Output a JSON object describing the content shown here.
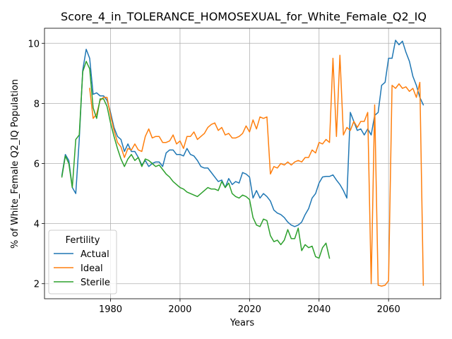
{
  "chart_data": {
    "type": "line",
    "title": "Score_4_in_TOLERANCE_HOMOSEXUAL_for_White_Female_Q2_IQ",
    "xlabel": "Years",
    "ylabel": "% of White_Female Q2_IQ Population",
    "xlim": [
      1961,
      2075
    ],
    "ylim": [
      1.5,
      10.5
    ],
    "x_ticks": [
      1980,
      2000,
      2020,
      2040,
      2060
    ],
    "y_ticks": [
      2,
      4,
      6,
      8,
      10
    ],
    "grid": true,
    "legend": {
      "title": "Fertility",
      "placement": "lower-left"
    },
    "colors": {
      "Actual": "#1f77b4",
      "Ideal": "#ff7f0e",
      "Sterile": "#2ca02c"
    },
    "series": [
      {
        "name": "Actual",
        "points": [
          [
            1966,
            5.6
          ],
          [
            1967,
            6.3
          ],
          [
            1968,
            6.1
          ],
          [
            1969,
            5.2
          ],
          [
            1970,
            5.0
          ],
          [
            1971,
            6.8
          ],
          [
            1972,
            9.1
          ],
          [
            1973,
            9.8
          ],
          [
            1974,
            9.5
          ],
          [
            1975,
            8.3
          ],
          [
            1976,
            8.35
          ],
          [
            1977,
            8.25
          ],
          [
            1978,
            8.25
          ],
          [
            1979,
            8.1
          ],
          [
            1980,
            7.7
          ],
          [
            1981,
            7.2
          ],
          [
            1982,
            6.9
          ],
          [
            1983,
            6.8
          ],
          [
            1984,
            6.4
          ],
          [
            1985,
            6.65
          ],
          [
            1986,
            6.4
          ],
          [
            1987,
            6.4
          ],
          [
            1988,
            6.2
          ],
          [
            1989,
            5.95
          ],
          [
            1990,
            6.1
          ],
          [
            1991,
            5.9
          ],
          [
            1992,
            6.0
          ],
          [
            1993,
            6.05
          ],
          [
            1994,
            6.05
          ],
          [
            1995,
            5.9
          ],
          [
            1996,
            6.35
          ],
          [
            1997,
            6.45
          ],
          [
            1998,
            6.45
          ],
          [
            1999,
            6.3
          ],
          [
            2000,
            6.3
          ],
          [
            2001,
            6.25
          ],
          [
            2002,
            6.5
          ],
          [
            2003,
            6.3
          ],
          [
            2004,
            6.25
          ],
          [
            2005,
            6.1
          ],
          [
            2006,
            5.9
          ],
          [
            2007,
            5.85
          ],
          [
            2008,
            5.85
          ],
          [
            2009,
            5.7
          ],
          [
            2010,
            5.55
          ],
          [
            2011,
            5.4
          ],
          [
            2012,
            5.45
          ],
          [
            2013,
            5.2
          ],
          [
            2014,
            5.5
          ],
          [
            2015,
            5.3
          ],
          [
            2016,
            5.4
          ],
          [
            2017,
            5.35
          ],
          [
            2018,
            5.7
          ],
          [
            2019,
            5.65
          ],
          [
            2020,
            5.55
          ],
          [
            2021,
            4.85
          ],
          [
            2022,
            5.1
          ],
          [
            2023,
            4.85
          ],
          [
            2024,
            5.0
          ],
          [
            2025,
            4.9
          ],
          [
            2026,
            4.75
          ],
          [
            2027,
            4.45
          ],
          [
            2028,
            4.35
          ],
          [
            2029,
            4.3
          ],
          [
            2030,
            4.2
          ],
          [
            2031,
            4.05
          ],
          [
            2032,
            3.95
          ],
          [
            2033,
            3.9
          ],
          [
            2034,
            3.95
          ],
          [
            2035,
            4.05
          ],
          [
            2036,
            4.3
          ],
          [
            2037,
            4.5
          ],
          [
            2038,
            4.85
          ],
          [
            2039,
            5.0
          ],
          [
            2040,
            5.35
          ],
          [
            2041,
            5.55
          ],
          [
            2042,
            5.57
          ],
          [
            2043,
            5.57
          ],
          [
            2044,
            5.62
          ],
          [
            2045,
            5.45
          ],
          [
            2046,
            5.3
          ],
          [
            2047,
            5.1
          ],
          [
            2048,
            4.85
          ],
          [
            2049,
            7.7
          ],
          [
            2050,
            7.4
          ],
          [
            2051,
            7.1
          ],
          [
            2052,
            7.15
          ],
          [
            2053,
            6.95
          ],
          [
            2054,
            7.15
          ],
          [
            2055,
            6.95
          ],
          [
            2056,
            7.6
          ],
          [
            2057,
            7.7
          ],
          [
            2058,
            8.6
          ],
          [
            2059,
            8.7
          ],
          [
            2060,
            9.5
          ],
          [
            2061,
            9.5
          ],
          [
            2062,
            10.1
          ],
          [
            2063,
            9.95
          ],
          [
            2064,
            10.07
          ],
          [
            2065,
            9.7
          ],
          [
            2066,
            9.4
          ],
          [
            2067,
            8.9
          ],
          [
            2068,
            8.6
          ],
          [
            2069,
            8.2
          ],
          [
            2070,
            7.95
          ]
        ]
      },
      {
        "name": "Ideal",
        "points": [
          [
            1974,
            8.5
          ],
          [
            1975,
            7.5
          ],
          [
            1976,
            7.65
          ],
          [
            1977,
            8.1
          ],
          [
            1978,
            8.2
          ],
          [
            1979,
            8.2
          ],
          [
            1980,
            7.6
          ],
          [
            1981,
            7.1
          ],
          [
            1982,
            6.7
          ],
          [
            1983,
            6.55
          ],
          [
            1984,
            6.2
          ],
          [
            1985,
            6.5
          ],
          [
            1986,
            6.45
          ],
          [
            1987,
            6.65
          ],
          [
            1988,
            6.45
          ],
          [
            1989,
            6.4
          ],
          [
            1990,
            6.9
          ],
          [
            1991,
            7.15
          ],
          [
            1992,
            6.85
          ],
          [
            1993,
            6.9
          ],
          [
            1994,
            6.9
          ],
          [
            1995,
            6.7
          ],
          [
            1996,
            6.7
          ],
          [
            1997,
            6.75
          ],
          [
            1998,
            6.95
          ],
          [
            1999,
            6.65
          ],
          [
            2000,
            6.75
          ],
          [
            2001,
            6.5
          ],
          [
            2002,
            6.9
          ],
          [
            2003,
            6.9
          ],
          [
            2004,
            7.05
          ],
          [
            2005,
            6.8
          ],
          [
            2006,
            6.9
          ],
          [
            2007,
            7.0
          ],
          [
            2008,
            7.2
          ],
          [
            2009,
            7.3
          ],
          [
            2010,
            7.35
          ],
          [
            2011,
            7.1
          ],
          [
            2012,
            7.2
          ],
          [
            2013,
            6.95
          ],
          [
            2014,
            7.0
          ],
          [
            2015,
            6.85
          ],
          [
            2016,
            6.85
          ],
          [
            2017,
            6.9
          ],
          [
            2018,
            7.0
          ],
          [
            2019,
            7.25
          ],
          [
            2020,
            7.05
          ],
          [
            2021,
            7.45
          ],
          [
            2022,
            7.15
          ],
          [
            2023,
            7.55
          ],
          [
            2024,
            7.5
          ],
          [
            2025,
            7.55
          ],
          [
            2026,
            5.65
          ],
          [
            2027,
            5.9
          ],
          [
            2028,
            5.85
          ],
          [
            2029,
            6.0
          ],
          [
            2030,
            5.95
          ],
          [
            2031,
            6.05
          ],
          [
            2032,
            5.95
          ],
          [
            2033,
            6.05
          ],
          [
            2034,
            6.1
          ],
          [
            2035,
            6.05
          ],
          [
            2036,
            6.2
          ],
          [
            2037,
            6.2
          ],
          [
            2038,
            6.45
          ],
          [
            2039,
            6.35
          ],
          [
            2040,
            6.7
          ],
          [
            2041,
            6.65
          ],
          [
            2042,
            6.8
          ],
          [
            2043,
            6.7
          ],
          [
            2044,
            9.5
          ],
          [
            2045,
            6.9
          ],
          [
            2046,
            9.6
          ],
          [
            2047,
            6.95
          ],
          [
            2048,
            7.2
          ],
          [
            2049,
            7.1
          ],
          [
            2050,
            7.4
          ],
          [
            2051,
            7.2
          ],
          [
            2052,
            7.4
          ],
          [
            2053,
            7.4
          ],
          [
            2054,
            7.7
          ],
          [
            2055,
            2.0
          ],
          [
            2056,
            7.95
          ],
          [
            2057,
            1.95
          ],
          [
            2058,
            1.92
          ],
          [
            2059,
            1.95
          ],
          [
            2060,
            2.1
          ],
          [
            2061,
            8.6
          ],
          [
            2062,
            8.5
          ],
          [
            2063,
            8.65
          ],
          [
            2064,
            8.5
          ],
          [
            2065,
            8.55
          ],
          [
            2066,
            8.4
          ],
          [
            2067,
            8.5
          ],
          [
            2068,
            8.2
          ],
          [
            2069,
            8.7
          ],
          [
            2070,
            1.95
          ]
        ]
      },
      {
        "name": "Sterile",
        "points": [
          [
            1966,
            5.55
          ],
          [
            1967,
            6.25
          ],
          [
            1968,
            6.0
          ],
          [
            1969,
            5.2
          ],
          [
            1970,
            6.8
          ],
          [
            1971,
            6.95
          ],
          [
            1972,
            9.05
          ],
          [
            1973,
            9.4
          ],
          [
            1974,
            9.15
          ],
          [
            1975,
            7.85
          ],
          [
            1976,
            7.5
          ],
          [
            1977,
            8.15
          ],
          [
            1978,
            8.15
          ],
          [
            1979,
            7.9
          ],
          [
            1980,
            7.35
          ],
          [
            1981,
            6.9
          ],
          [
            1982,
            6.5
          ],
          [
            1983,
            6.15
          ],
          [
            1984,
            5.9
          ],
          [
            1985,
            6.15
          ],
          [
            1986,
            6.3
          ],
          [
            1987,
            6.1
          ],
          [
            1988,
            6.2
          ],
          [
            1989,
            5.9
          ],
          [
            1990,
            6.15
          ],
          [
            1991,
            6.1
          ],
          [
            1992,
            6.0
          ],
          [
            1993,
            5.9
          ],
          [
            1994,
            5.95
          ],
          [
            1995,
            5.8
          ],
          [
            1996,
            5.65
          ],
          [
            1997,
            5.55
          ],
          [
            1998,
            5.4
          ],
          [
            1999,
            5.3
          ],
          [
            2000,
            5.2
          ],
          [
            2001,
            5.15
          ],
          [
            2002,
            5.05
          ],
          [
            2003,
            5.0
          ],
          [
            2004,
            4.95
          ],
          [
            2005,
            4.9
          ],
          [
            2006,
            5.0
          ],
          [
            2007,
            5.1
          ],
          [
            2008,
            5.2
          ],
          [
            2009,
            5.15
          ],
          [
            2010,
            5.15
          ],
          [
            2011,
            5.1
          ],
          [
            2012,
            5.4
          ],
          [
            2013,
            5.2
          ],
          [
            2014,
            5.35
          ],
          [
            2015,
            5.0
          ],
          [
            2016,
            4.9
          ],
          [
            2017,
            4.85
          ],
          [
            2018,
            4.95
          ],
          [
            2019,
            4.9
          ],
          [
            2020,
            4.8
          ],
          [
            2021,
            4.2
          ],
          [
            2022,
            3.95
          ],
          [
            2023,
            3.9
          ],
          [
            2024,
            4.15
          ],
          [
            2025,
            4.1
          ],
          [
            2026,
            3.6
          ],
          [
            2027,
            3.4
          ],
          [
            2028,
            3.45
          ],
          [
            2029,
            3.3
          ],
          [
            2030,
            3.45
          ],
          [
            2031,
            3.8
          ],
          [
            2032,
            3.5
          ],
          [
            2033,
            3.5
          ],
          [
            2034,
            3.85
          ],
          [
            2035,
            3.1
          ],
          [
            2036,
            3.3
          ],
          [
            2037,
            3.2
          ],
          [
            2038,
            3.25
          ],
          [
            2039,
            2.9
          ],
          [
            2040,
            2.85
          ],
          [
            2041,
            3.2
          ],
          [
            2042,
            3.35
          ],
          [
            2043,
            2.85
          ]
        ]
      }
    ]
  }
}
